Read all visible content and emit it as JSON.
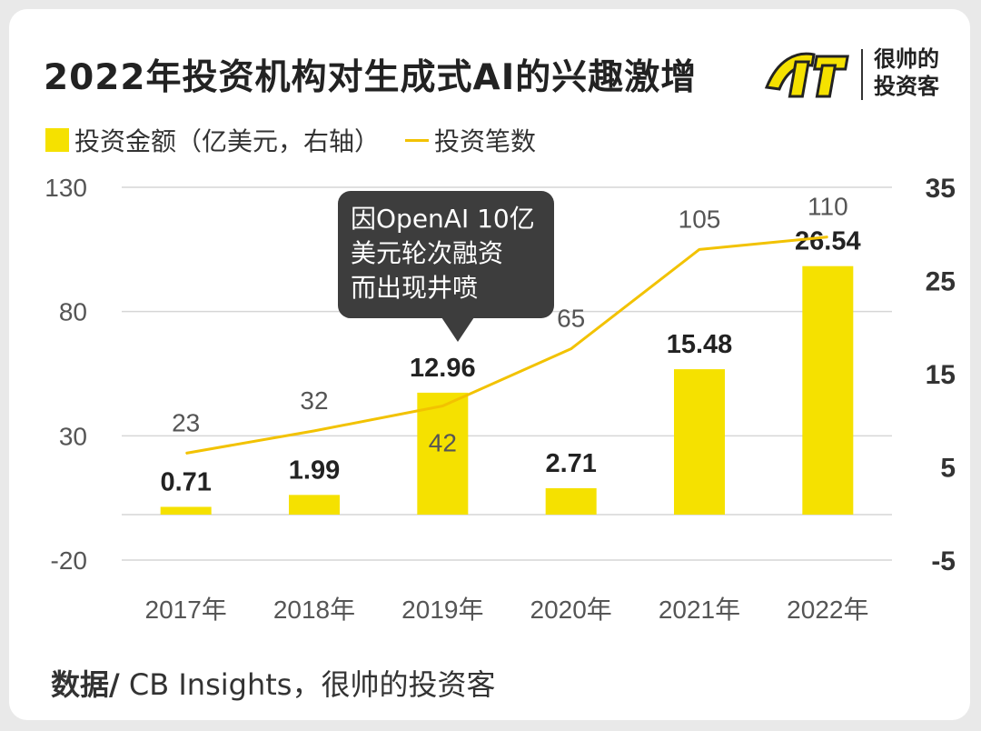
{
  "header": {
    "title": "2022年投资机构对生成式AI的兴趣激增",
    "brand_line1": "很帅的",
    "brand_line2": "投资客"
  },
  "legend": {
    "bar_label": "投资金额（亿美元，右轴）",
    "line_label": "投资笔数"
  },
  "callout": {
    "text": "因OpenAI 10亿\n美元轮次融资\n而出现井喷"
  },
  "footer": {
    "label": "数据/",
    "source": " CB Insights，很帅的投资客"
  },
  "colors": {
    "bar": "#f5e100",
    "line": "#f2c200",
    "grid": "#d6d6d6"
  },
  "chart_data": {
    "type": "bar+line",
    "categories": [
      "2017年",
      "2018年",
      "2019年",
      "2020年",
      "2021年",
      "2022年"
    ],
    "series": [
      {
        "name": "投资金额（亿美元，右轴）",
        "type": "bar",
        "axis": "right",
        "values": [
          0.71,
          1.99,
          12.96,
          2.71,
          15.48,
          26.54
        ],
        "labels": [
          "0.71",
          "1.99",
          "12.96",
          "2.71",
          "15.48",
          "26.54"
        ]
      },
      {
        "name": "投资笔数",
        "type": "line",
        "axis": "left",
        "values": [
          23,
          32,
          42,
          65,
          105,
          110
        ],
        "labels": [
          "23",
          "32",
          "42",
          "65",
          "105",
          "110"
        ]
      }
    ],
    "left_axis": {
      "ticks": [
        "130",
        "80",
        "30",
        "-20"
      ],
      "ylim": [
        -20,
        130
      ]
    },
    "right_axis": {
      "ticks": [
        "35",
        "25",
        "15",
        "5",
        "-5"
      ],
      "ylim": [
        -5,
        35
      ]
    }
  }
}
